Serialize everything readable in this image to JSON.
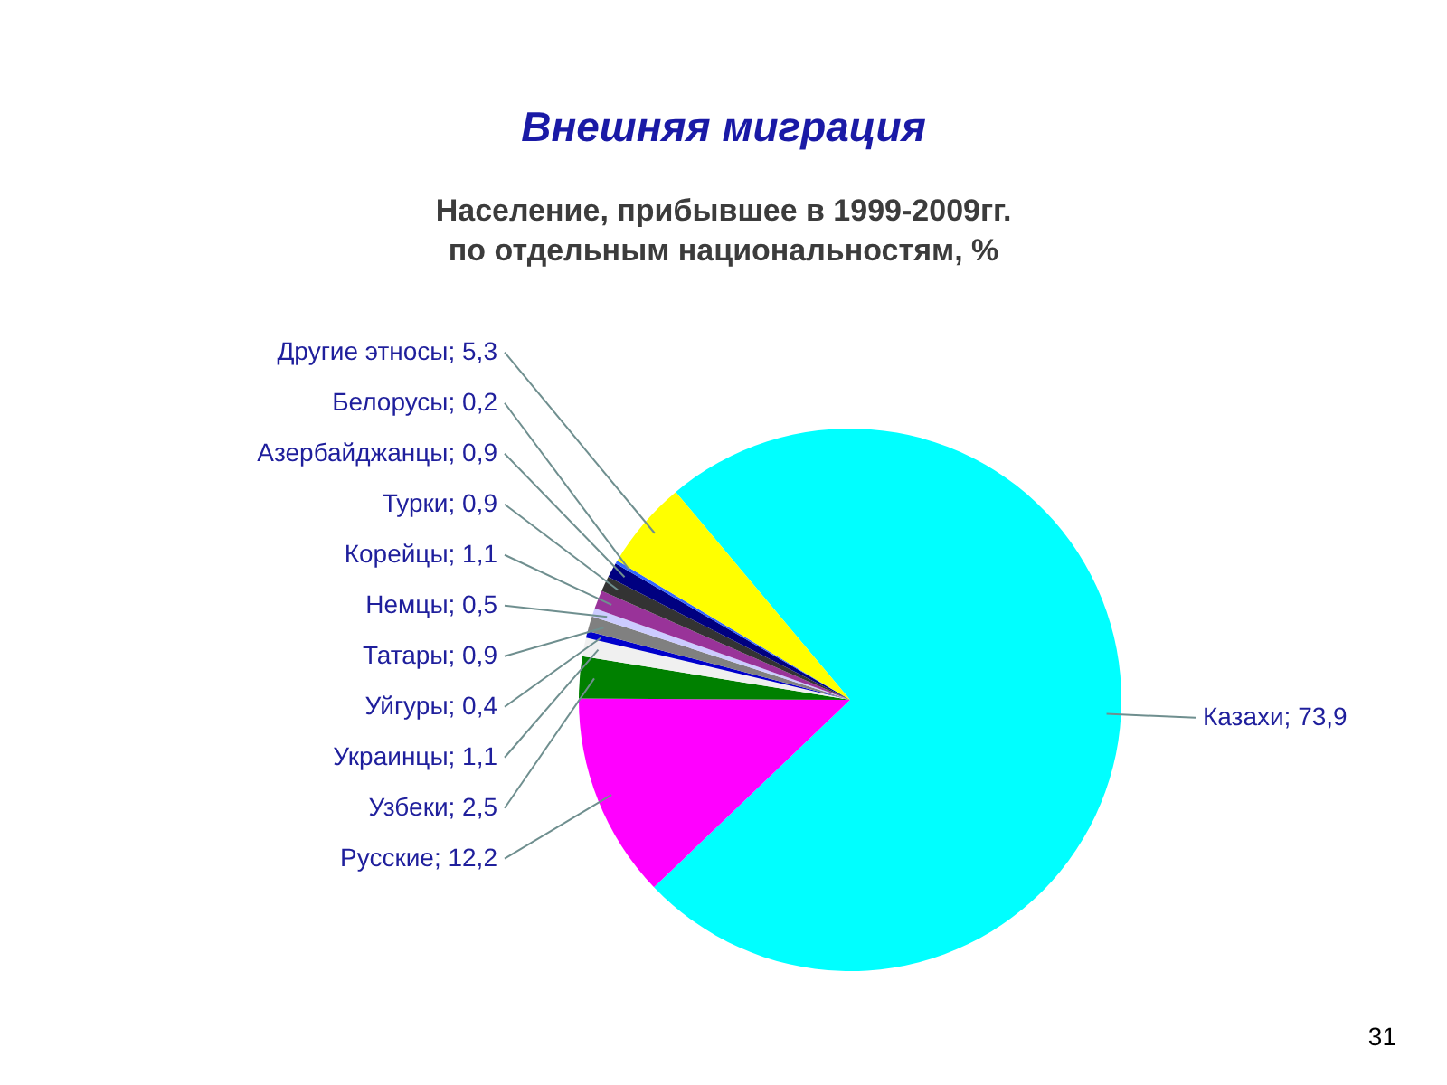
{
  "chart_data": {
    "type": "pie",
    "title": "Внешняя миграция",
    "subtitle": "Население, прибывшее в 1999-2009гг.\nпо отдельным национальностям, %",
    "categories": [
      "Казахи",
      "Русские",
      "Узбеки",
      "Украинцы",
      "Уйгуры",
      "Татары",
      "Немцы",
      "Корейцы",
      "Турки",
      "Азербайджанцы",
      "Белорусы",
      "Другие этносы"
    ],
    "values": [
      73.9,
      12.2,
      2.5,
      1.1,
      0.4,
      0.9,
      0.5,
      1.1,
      0.9,
      0.9,
      0.2,
      5.3
    ],
    "colors": [
      "#00ffff",
      "#ff00ff",
      "#008000",
      "#f0f0f0",
      "#0000cc",
      "#808080",
      "#ccccff",
      "#993399",
      "#333333",
      "#000080",
      "#3366ff",
      "#ffff00"
    ],
    "value_labels": [
      "73,9",
      "12,2",
      "2,5",
      "1,1",
      "0,4",
      "0,9",
      "0,5",
      "1,1",
      "0,9",
      "0,9",
      "0,2",
      "5,3"
    ],
    "annotations": [
      "31"
    ]
  }
}
